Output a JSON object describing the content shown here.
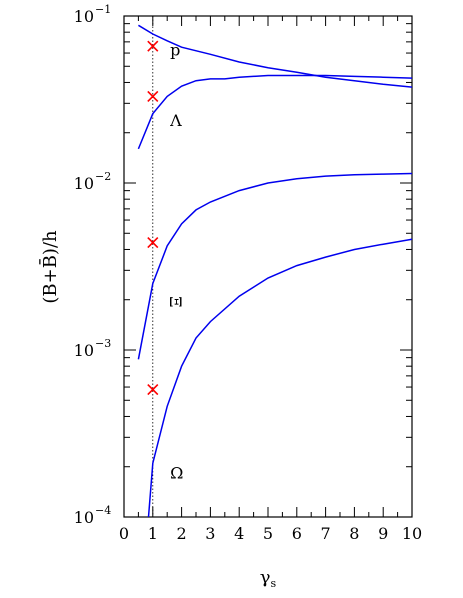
{
  "chart_data": {
    "type": "line",
    "xlabel": "γ",
    "xlabel_sub": "s",
    "ylabel": "(B+B̄)/h",
    "xlim": [
      0,
      10
    ],
    "ylim": [
      0.0001,
      0.1
    ],
    "yscale": "log",
    "grid": false,
    "line_color": "#0000ee",
    "marker_color": "#ff0000",
    "x_ticks": [
      "0",
      "1",
      "2",
      "3",
      "4",
      "5",
      "6",
      "7",
      "8",
      "9",
      "10"
    ],
    "y_ticks": [
      {
        "value": 0.1,
        "base": "10",
        "exp": "−1"
      },
      {
        "value": 0.01,
        "base": "10",
        "exp": "−2"
      },
      {
        "value": 0.001,
        "base": "10",
        "exp": "−3"
      },
      {
        "value": 0.0001,
        "base": "10",
        "exp": "−4"
      }
    ],
    "reference_line_x": 1,
    "series": [
      {
        "name": "p",
        "x": [
          0.5,
          1.0,
          1.5,
          2.0,
          3.0,
          4.0,
          5.0,
          6.0,
          7.0,
          8.0,
          9.0,
          10.0
        ],
        "y": [
          0.088,
          0.078,
          0.071,
          0.065,
          0.059,
          0.053,
          0.049,
          0.046,
          0.043,
          0.041,
          0.039,
          0.0375
        ]
      },
      {
        "name": "Λ",
        "x": [
          0.5,
          1.0,
          1.5,
          2.0,
          2.5,
          3.0,
          3.5,
          4.0,
          5.0,
          6.0,
          7.0,
          8.0,
          9.0,
          10.0
        ],
        "y": [
          0.016,
          0.026,
          0.033,
          0.038,
          0.041,
          0.042,
          0.042,
          0.043,
          0.044,
          0.044,
          0.044,
          0.0435,
          0.043,
          0.0425
        ]
      },
      {
        "name": "Ξ",
        "x": [
          0.5,
          1.0,
          1.5,
          2.0,
          2.5,
          3.0,
          4.0,
          5.0,
          6.0,
          7.0,
          8.0,
          9.0,
          10.0
        ],
        "y": [
          0.00088,
          0.0025,
          0.0042,
          0.0057,
          0.0069,
          0.0077,
          0.009,
          0.01,
          0.0106,
          0.011,
          0.0112,
          0.0113,
          0.0114
        ]
      },
      {
        "name": "Ω",
        "x": [
          0.85,
          1.0,
          1.5,
          2.0,
          2.5,
          3.0,
          4.0,
          5.0,
          6.0,
          7.0,
          8.0,
          9.0,
          10.0
        ],
        "y": [
          0.0001,
          0.00021,
          0.00046,
          0.0008,
          0.00118,
          0.00148,
          0.0021,
          0.0027,
          0.0032,
          0.0036,
          0.004,
          0.0043,
          0.0046
        ]
      }
    ],
    "markers": [
      {
        "x": 1,
        "y": 0.066
      },
      {
        "x": 1,
        "y": 0.033
      },
      {
        "x": 1,
        "y": 0.0044
      },
      {
        "x": 1,
        "y": 0.00058
      }
    ],
    "labels": [
      {
        "text": "p",
        "x": 1.6,
        "y": 0.058
      },
      {
        "text": "Λ",
        "x": 1.6,
        "y": 0.022
      },
      {
        "text": "Ξ",
        "x": 1.6,
        "y": 0.0021
      },
      {
        "text": "Ω",
        "x": 1.6,
        "y": 0.00017
      }
    ]
  }
}
